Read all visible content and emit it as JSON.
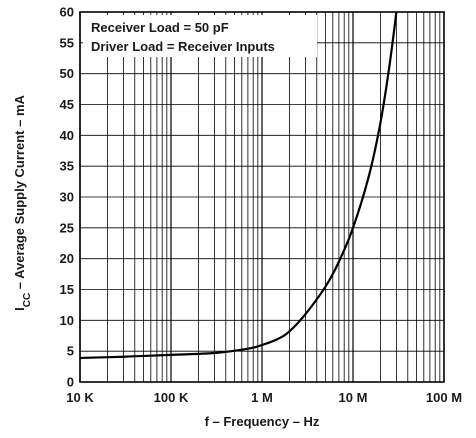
{
  "chart_data": {
    "type": "line",
    "title": "",
    "xlabel": "f – Frequency – Hz",
    "ylabel": "I",
    "ylabel_subscript": "CC",
    "ylabel_rest": " – Average Supply Current – mA",
    "x_scale": "log",
    "xlim": [
      10000,
      100000000
    ],
    "ylim": [
      0,
      60
    ],
    "grid": true,
    "x_ticks": [
      {
        "value": 10000,
        "label": "10 K"
      },
      {
        "value": 100000,
        "label": "100 K"
      },
      {
        "value": 1000000,
        "label": "1 M"
      },
      {
        "value": 10000000,
        "label": "10 M"
      },
      {
        "value": 100000000,
        "label": "100 M"
      }
    ],
    "y_ticks": [
      0,
      5,
      10,
      15,
      20,
      25,
      30,
      35,
      40,
      45,
      50,
      55,
      60
    ],
    "annotations": [
      "Receiver Load = 50 pF",
      "Driver Load = Receiver Inputs"
    ],
    "series": [
      {
        "color": "#000000",
        "x": [
          10000,
          30000,
          100000,
          300000,
          700000,
          1000000,
          1500000,
          2000000,
          3000000,
          5000000,
          7000000,
          10000000,
          15000000,
          20000000,
          25000000,
          30000000
        ],
        "y": [
          3.9,
          4.1,
          4.4,
          4.7,
          5.4,
          6.0,
          7.0,
          8.2,
          11.0,
          15.5,
          19.5,
          25.0,
          33.5,
          42.0,
          51.0,
          60.0
        ]
      }
    ]
  }
}
